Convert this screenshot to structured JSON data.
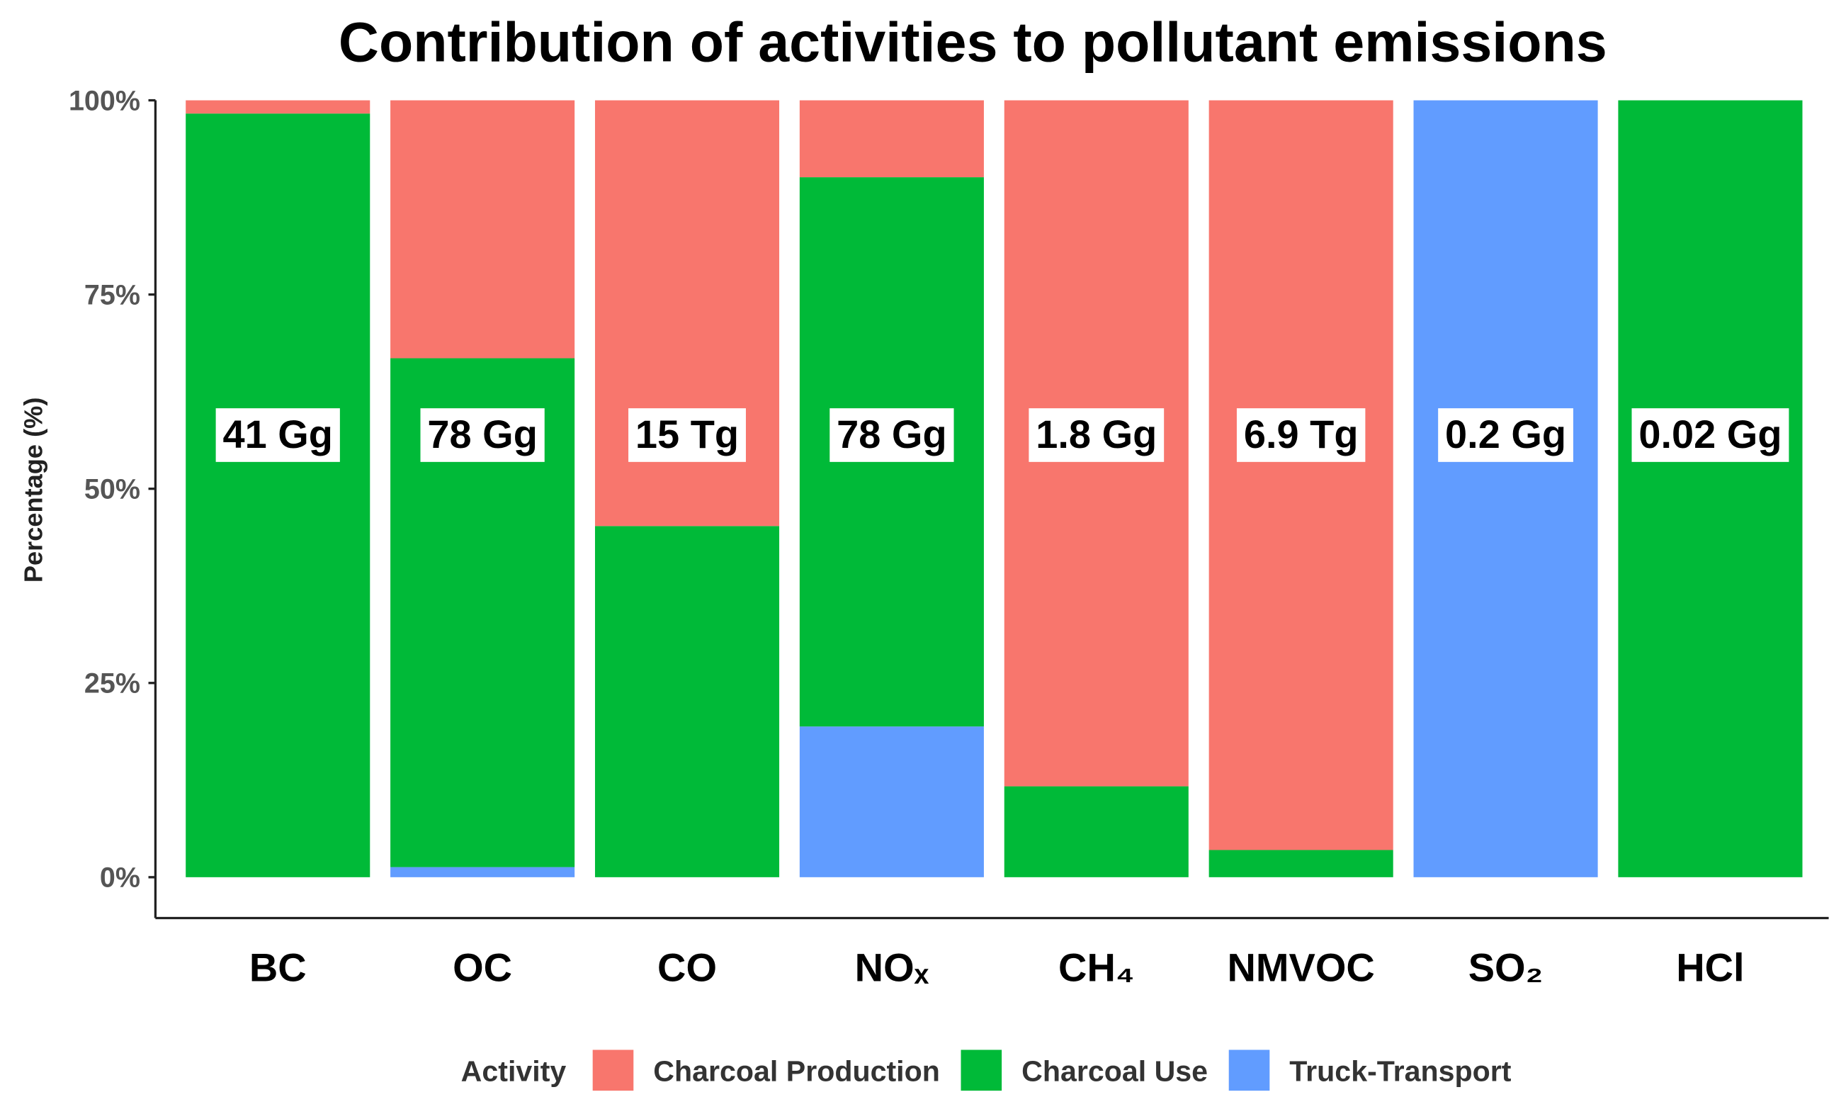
{
  "chart_data": {
    "type": "stacked_bar",
    "title": "Contribution of activities to pollutant emissions",
    "y_label": "Percentage (%)",
    "legend_title": "Activity",
    "categories": [
      "BC",
      "OC",
      "CO",
      "NOₓ",
      "CH₄",
      "NMVOC",
      "SO₂",
      "HCl"
    ],
    "series": [
      {
        "name": "Truck-Transport",
        "color": "#619CFF",
        "values": [
          0,
          1.3,
          0,
          19.4,
          0,
          0,
          100,
          0
        ]
      },
      {
        "name": "Charcoal Use",
        "color": "#00BA38",
        "values": [
          98.3,
          65.5,
          45.2,
          70.7,
          11.7,
          3.5,
          0,
          100
        ]
      },
      {
        "name": "Charcoal Production",
        "color": "#F8766D",
        "values": [
          1.7,
          33.2,
          54.8,
          9.9,
          88.3,
          96.5,
          0,
          0
        ]
      }
    ],
    "legend_order": [
      2,
      1,
      0
    ],
    "annotations": [
      "41 Gg",
      "78 Gg",
      "15 Tg",
      "78 Gg",
      "1.8 Gg",
      "6.9 Tg",
      "0.2 Gg",
      "0.02 Gg"
    ],
    "ylim": [
      0,
      100
    ],
    "yticks": [
      {
        "value": 0,
        "label": "0%"
      },
      {
        "value": 25,
        "label": "25%"
      },
      {
        "value": 50,
        "label": "50%"
      },
      {
        "value": 75,
        "label": "75%"
      },
      {
        "value": 100,
        "label": "100%"
      }
    ]
  }
}
